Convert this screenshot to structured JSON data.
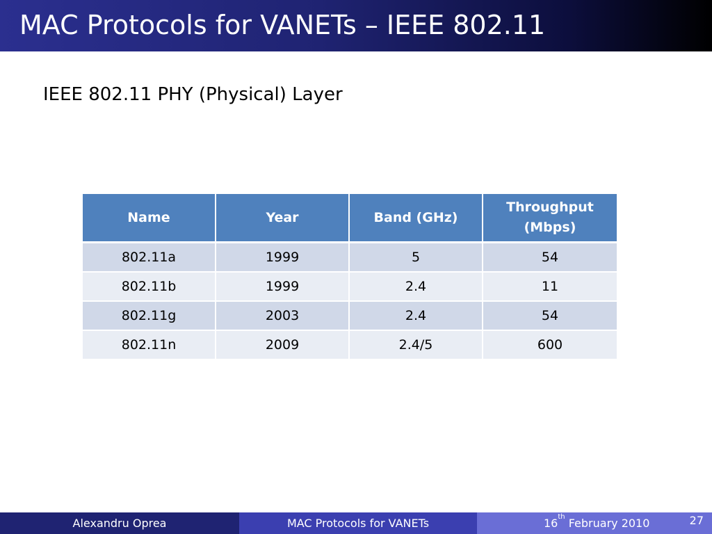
{
  "slide": {
    "title": "MAC Protocols for VANETs – IEEE 802.11",
    "subtitle": "IEEE 802.11 PHY (Physical) Layer"
  },
  "table": {
    "headers": {
      "name": "Name",
      "year": "Year",
      "band": "Band (GHz)",
      "throughput_line1": "Throughput",
      "throughput_line2": "(Mbps)"
    },
    "rows": [
      {
        "name": "802.11a",
        "year": "1999",
        "band": "5",
        "throughput": "54"
      },
      {
        "name": "802.11b",
        "year": "1999",
        "band": "2.4",
        "throughput": "11"
      },
      {
        "name": "802.11g",
        "year": "2003",
        "band": "2.4",
        "throughput": "54"
      },
      {
        "name": "802.11n",
        "year": "2009",
        "band": "2.4/5",
        "throughput": "600"
      }
    ]
  },
  "footer": {
    "author": "Alexandru Oprea",
    "presentation_title": "MAC Protocols for VANETs",
    "date_day": "16",
    "date_suffix": "th",
    "date_rest": " February 2010",
    "page_number": "27"
  },
  "colors": {
    "title_bar": "#1f2372",
    "table_header": "#4f81bd",
    "row_band_dark": "#d0d8e8",
    "row_band_light": "#e9edf4",
    "footer_left": "#1f2372",
    "footer_middle": "#3b3fb0",
    "footer_right": "#6a6ed6"
  }
}
